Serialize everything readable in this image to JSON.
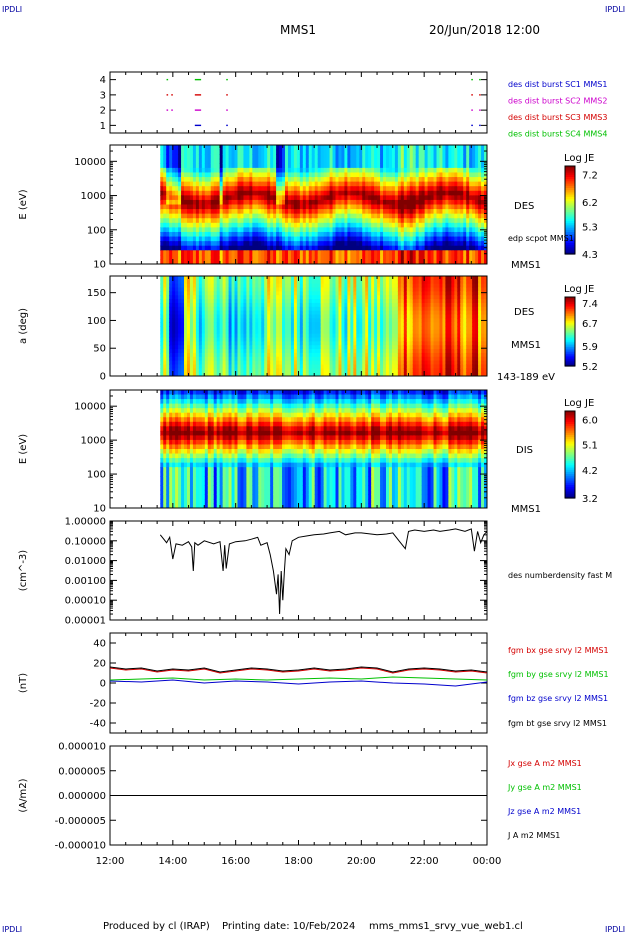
{
  "header": {
    "corner_left_top": "IPDLI",
    "corner_right_top": "IPDLI",
    "mission": "MMS1",
    "datetime": "20/Jun/2018 12:00",
    "corner_left_bottom": "IPDLI",
    "corner_right_bottom": "IPDLI"
  },
  "footer": {
    "producer": "Produced by cl (IRAP)",
    "printing": "Printing date: 10/Feb/2024",
    "filename": "mms_mms1_srvy_vue_web1.cl"
  },
  "colors": {
    "black": "#000000",
    "red": "#d40000",
    "green": "#00c000",
    "blue": "#0000cc",
    "magenta": "#cc00cc",
    "heading_blue": "#0000a0"
  },
  "chart_data": [
    {
      "id": "burst",
      "type": "scatter",
      "ylim": [
        0.5,
        4.5
      ],
      "yticks": [
        "1",
        "2",
        "3",
        "4"
      ],
      "legend": [
        {
          "label": "des dist burst SC1 MMS1",
          "color": "#0000cc"
        },
        {
          "label": "des dist burst SC2 MMS2",
          "color": "#cc00cc"
        },
        {
          "label": "des dist burst SC3 MMS3",
          "color": "#d40000"
        },
        {
          "label": "des dist burst SC4 MMS4",
          "color": "#00c000"
        }
      ],
      "segments": [
        {
          "sc": 4,
          "color": "#00c000",
          "t": [
            [
              13.8,
              13.85
            ],
            [
              14.7,
              14.9
            ],
            [
              15.7,
              15.75
            ],
            [
              23.5,
              23.55
            ],
            [
              23.75,
              23.8
            ]
          ]
        },
        {
          "sc": 3,
          "color": "#d40000",
          "t": [
            [
              13.8,
              13.85
            ],
            [
              13.95,
              14.0
            ],
            [
              14.7,
              14.9
            ],
            [
              15.7,
              15.75
            ],
            [
              23.5,
              23.55
            ],
            [
              23.75,
              23.8
            ]
          ]
        },
        {
          "sc": 2,
          "color": "#cc00cc",
          "t": [
            [
              13.8,
              13.85
            ],
            [
              13.95,
              14.0
            ],
            [
              14.7,
              14.9
            ],
            [
              15.7,
              15.75
            ],
            [
              23.5,
              23.55
            ],
            [
              23.75,
              23.8
            ]
          ]
        },
        {
          "sc": 1,
          "color": "#0000cc",
          "t": [
            [
              14.7,
              14.9
            ],
            [
              15.7,
              15.75
            ],
            [
              23.5,
              23.55
            ],
            [
              23.75,
              23.8
            ]
          ]
        }
      ]
    },
    {
      "id": "des-energy",
      "type": "heatmap",
      "ylabel": "E (eV)",
      "ylog": true,
      "ylim": [
        10,
        30000
      ],
      "yticks": [
        "10",
        "100",
        "1000",
        "10000"
      ],
      "species": "DES",
      "aux_label": "edp scpot MMS1",
      "bottom_label": "MMS1",
      "colorbar": {
        "title": "Log JE",
        "ticks": [
          "7.2",
          "6.2",
          "5.3",
          "4.3"
        ],
        "min": 4.3,
        "max": 7.5
      },
      "data_start": 13.6
    },
    {
      "id": "des-pitch",
      "type": "heatmap",
      "ylabel": "a (deg)",
      "ylim": [
        0,
        180
      ],
      "yticks": [
        "0",
        "50",
        "100",
        "150"
      ],
      "species": "DES",
      "aux_label": "MMS1",
      "bottom_label": "143-189 eV",
      "colorbar": {
        "title": "Log JE",
        "ticks": [
          "7.4",
          "6.7",
          "5.9",
          "5.2"
        ],
        "min": 5.2,
        "max": 7.6
      },
      "data_start": 13.6
    },
    {
      "id": "dis-energy",
      "type": "heatmap",
      "ylabel": "E (eV)",
      "ylog": true,
      "ylim": [
        10,
        30000
      ],
      "yticks": [
        "10",
        "100",
        "1000",
        "10000"
      ],
      "species": "DIS",
      "bottom_label": "MMS1",
      "colorbar": {
        "title": "Log JE",
        "ticks": [
          "6.0",
          "5.1",
          "4.2",
          "3.2"
        ],
        "min": 3.2,
        "max": 6.3
      },
      "data_start": 13.6
    },
    {
      "id": "density",
      "type": "line",
      "ylabel": "(cm^-3)",
      "ylog": true,
      "ylim": [
        1e-05,
        1
      ],
      "yticks": [
        "1.00000",
        "0.10000",
        "0.01000",
        "0.00100",
        "0.00010",
        "0.00001"
      ],
      "series": [
        {
          "name": "des numberdensity fast M",
          "color": "#000000",
          "t": [
            13.6,
            13.8,
            13.9,
            14.0,
            14.1,
            14.3,
            14.5,
            14.6,
            14.65,
            14.7,
            14.8,
            15.0,
            15.3,
            15.5,
            15.6,
            15.65,
            15.7,
            15.8,
            16.0,
            16.3,
            16.5,
            16.7,
            16.8,
            17.0,
            17.1,
            17.2,
            17.3,
            17.35,
            17.4,
            17.45,
            17.5,
            17.55,
            17.6,
            17.7,
            17.8,
            18.0,
            18.3,
            18.5,
            18.8,
            19.0,
            19.3,
            19.5,
            19.8,
            20.0,
            20.3,
            20.5,
            20.8,
            21.0,
            21.2,
            21.4,
            21.5,
            21.7,
            22.0,
            22.3,
            22.5,
            22.8,
            23.0,
            23.3,
            23.5,
            23.6,
            23.7,
            23.8,
            23.9,
            24.0
          ],
          "values": [
            0.2,
            0.08,
            0.15,
            0.012,
            0.07,
            0.06,
            0.09,
            0.05,
            0.003,
            0.08,
            0.06,
            0.1,
            0.07,
            0.09,
            0.003,
            0.06,
            0.004,
            0.07,
            0.09,
            0.1,
            0.12,
            0.15,
            0.06,
            0.08,
            0.02,
            0.003,
            0.0002,
            0.002,
            2e-05,
            0.003,
            0.0001,
            0.003,
            0.04,
            0.02,
            0.1,
            0.15,
            0.18,
            0.2,
            0.22,
            0.25,
            0.3,
            0.2,
            0.25,
            0.25,
            0.22,
            0.2,
            0.22,
            0.25,
            0.1,
            0.04,
            0.3,
            0.35,
            0.3,
            0.35,
            0.3,
            0.35,
            0.4,
            0.3,
            0.4,
            0.03,
            0.3,
            0.08,
            0.2,
            0.3
          ]
        }
      ]
    },
    {
      "id": "fgm",
      "type": "line",
      "ylabel": "(nT)",
      "ylim": [
        -50,
        50
      ],
      "yticks": [
        "40",
        "20",
        "0",
        "-20",
        "-40"
      ],
      "series": [
        {
          "name": "fgm bx gse srvy l2 MMS1",
          "color": "#d40000",
          "t": [
            12.0,
            12.5,
            13.0,
            13.5,
            14.0,
            14.5,
            15.0,
            15.5,
            16.0,
            16.5,
            17.0,
            17.5,
            18.0,
            18.5,
            19.0,
            19.5,
            20.0,
            20.5,
            21.0,
            21.5,
            22.0,
            22.5,
            23.0,
            23.5,
            24.0
          ],
          "values": [
            15,
            13,
            14,
            11,
            13,
            12,
            14,
            10,
            12,
            14,
            13,
            11,
            12,
            14,
            12,
            13,
            15,
            14,
            10,
            13,
            14,
            13,
            11,
            12,
            10
          ]
        },
        {
          "name": "fgm by gse srvy l2 MMS1",
          "color": "#00c000",
          "t": [
            12.0,
            13.0,
            14.0,
            15.0,
            16.0,
            17.0,
            18.0,
            19.0,
            20.0,
            21.0,
            22.0,
            23.0,
            24.0
          ],
          "values": [
            3,
            4,
            5,
            3,
            4,
            3,
            4,
            5,
            4,
            6,
            5,
            4,
            3
          ]
        },
        {
          "name": "fgm bz gse srvy l2 MMS1",
          "color": "#0000cc",
          "t": [
            12.0,
            13.0,
            14.0,
            15.0,
            16.0,
            17.0,
            18.0,
            19.0,
            20.0,
            21.0,
            22.0,
            23.0,
            24.0
          ],
          "values": [
            2,
            1,
            3,
            0,
            2,
            1,
            -1,
            1,
            2,
            0,
            -1,
            -3,
            1
          ]
        },
        {
          "name": "fgm bt gse srvy l2 MMS1",
          "color": "#000000",
          "t": [
            12.0,
            12.5,
            13.0,
            13.5,
            14.0,
            14.5,
            15.0,
            15.5,
            16.0,
            16.5,
            17.0,
            17.5,
            18.0,
            18.5,
            19.0,
            19.5,
            20.0,
            20.5,
            21.0,
            21.5,
            22.0,
            22.5,
            23.0,
            23.5,
            24.0
          ],
          "values": [
            16,
            14,
            15,
            12,
            14,
            13,
            15,
            11,
            13,
            15,
            14,
            12,
            13,
            15,
            13,
            14,
            16,
            15,
            11,
            14,
            15,
            14,
            12,
            13,
            11
          ]
        }
      ]
    },
    {
      "id": "current",
      "type": "line",
      "ylabel": "(A/m2)",
      "ylim": [
        -1e-05,
        1e-05
      ],
      "yticks": [
        "0.000010",
        "0.000005",
        "0.000000",
        "-0.000005",
        "-0.000010"
      ],
      "series": [
        {
          "name": "Jx gse A m2 MMS1",
          "color": "#d40000",
          "t": [
            12,
            24
          ],
          "values": [
            0,
            0
          ]
        },
        {
          "name": "Jy gse A m2 MMS1",
          "color": "#00c000",
          "t": [
            12,
            24
          ],
          "values": [
            0,
            0
          ]
        },
        {
          "name": "Jz gse A m2 MMS1",
          "color": "#0000cc",
          "t": [
            12,
            24
          ],
          "values": [
            0,
            0
          ]
        },
        {
          "name": "J A m2 MMS1",
          "color": "#000000",
          "t": [
            12,
            24
          ],
          "values": [
            0,
            0
          ]
        }
      ]
    }
  ],
  "time_axis": {
    "xlim": [
      12,
      24
    ],
    "ticks": [
      "12:00",
      "14:00",
      "16:00",
      "18:00",
      "20:00",
      "22:00",
      "00:00"
    ]
  }
}
